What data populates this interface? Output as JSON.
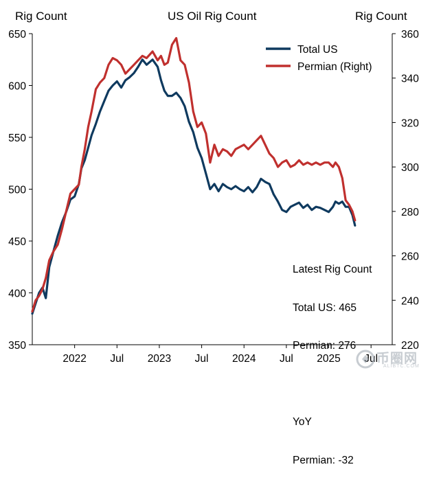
{
  "chart_data": {
    "type": "line",
    "title": "US Oil Rig Count",
    "left_axis_label": "Rig Count",
    "right_axis_label": "Rig Count",
    "left_ylim": [
      350,
      650
    ],
    "left_ticks": [
      350,
      400,
      450,
      500,
      550,
      600,
      650
    ],
    "right_ylim": [
      220,
      360
    ],
    "right_ticks": [
      220,
      240,
      260,
      280,
      300,
      320,
      340,
      360
    ],
    "x_ticks": [
      "2022",
      "Jul",
      "2023",
      "Jul",
      "2024",
      "Jul",
      "2025",
      "Jul"
    ],
    "x_tick_positions": [
      2022.0,
      2022.5,
      2023.0,
      2023.5,
      2024.0,
      2024.5,
      2025.0,
      2025.5
    ],
    "xlim": [
      2021.5,
      2025.75
    ],
    "legend_position": "top-right",
    "series": [
      {
        "name": "Total US",
        "axis": "left",
        "color": "#0f3a5f",
        "points": [
          [
            2021.5,
            380
          ],
          [
            2021.54,
            390
          ],
          [
            2021.58,
            400
          ],
          [
            2021.62,
            405
          ],
          [
            2021.66,
            395
          ],
          [
            2021.7,
            425
          ],
          [
            2021.75,
            440
          ],
          [
            2021.8,
            455
          ],
          [
            2021.85,
            468
          ],
          [
            2021.9,
            478
          ],
          [
            2021.95,
            490
          ],
          [
            2022.0,
            493
          ],
          [
            2022.05,
            505
          ],
          [
            2022.08,
            520
          ],
          [
            2022.12,
            528
          ],
          [
            2022.16,
            540
          ],
          [
            2022.2,
            552
          ],
          [
            2022.25,
            563
          ],
          [
            2022.3,
            575
          ],
          [
            2022.35,
            585
          ],
          [
            2022.4,
            595
          ],
          [
            2022.45,
            600
          ],
          [
            2022.5,
            604
          ],
          [
            2022.55,
            598
          ],
          [
            2022.6,
            605
          ],
          [
            2022.65,
            608
          ],
          [
            2022.7,
            612
          ],
          [
            2022.75,
            618
          ],
          [
            2022.8,
            625
          ],
          [
            2022.85,
            620
          ],
          [
            2022.92,
            625
          ],
          [
            2022.98,
            618
          ],
          [
            2023.02,
            605
          ],
          [
            2023.06,
            595
          ],
          [
            2023.1,
            590
          ],
          [
            2023.15,
            590
          ],
          [
            2023.2,
            593
          ],
          [
            2023.25,
            588
          ],
          [
            2023.3,
            580
          ],
          [
            2023.35,
            565
          ],
          [
            2023.4,
            555
          ],
          [
            2023.45,
            540
          ],
          [
            2023.5,
            530
          ],
          [
            2023.55,
            515
          ],
          [
            2023.6,
            500
          ],
          [
            2023.65,
            505
          ],
          [
            2023.7,
            498
          ],
          [
            2023.75,
            505
          ],
          [
            2023.8,
            502
          ],
          [
            2023.85,
            500
          ],
          [
            2023.9,
            503
          ],
          [
            2023.95,
            500
          ],
          [
            2024.0,
            498
          ],
          [
            2024.05,
            502
          ],
          [
            2024.1,
            497
          ],
          [
            2024.15,
            502
          ],
          [
            2024.2,
            510
          ],
          [
            2024.25,
            507
          ],
          [
            2024.3,
            505
          ],
          [
            2024.35,
            495
          ],
          [
            2024.4,
            488
          ],
          [
            2024.45,
            480
          ],
          [
            2024.5,
            478
          ],
          [
            2024.55,
            483
          ],
          [
            2024.6,
            485
          ],
          [
            2024.65,
            487
          ],
          [
            2024.7,
            482
          ],
          [
            2024.75,
            485
          ],
          [
            2024.8,
            480
          ],
          [
            2024.85,
            483
          ],
          [
            2024.9,
            482
          ],
          [
            2024.95,
            480
          ],
          [
            2025.0,
            478
          ],
          [
            2025.05,
            483
          ],
          [
            2025.08,
            488
          ],
          [
            2025.12,
            486
          ],
          [
            2025.16,
            488
          ],
          [
            2025.2,
            483
          ],
          [
            2025.24,
            483
          ],
          [
            2025.28,
            475
          ],
          [
            2025.31,
            465
          ]
        ]
      },
      {
        "name": "Permian (Right)",
        "axis": "right",
        "color": "#c0302e",
        "points": [
          [
            2021.5,
            235
          ],
          [
            2021.54,
            240
          ],
          [
            2021.58,
            242
          ],
          [
            2021.62,
            245
          ],
          [
            2021.66,
            250
          ],
          [
            2021.7,
            258
          ],
          [
            2021.75,
            262
          ],
          [
            2021.8,
            265
          ],
          [
            2021.85,
            272
          ],
          [
            2021.9,
            280
          ],
          [
            2021.95,
            288
          ],
          [
            2022.0,
            290
          ],
          [
            2022.05,
            292
          ],
          [
            2022.08,
            300
          ],
          [
            2022.12,
            308
          ],
          [
            2022.16,
            318
          ],
          [
            2022.2,
            325
          ],
          [
            2022.25,
            335
          ],
          [
            2022.3,
            338
          ],
          [
            2022.35,
            340
          ],
          [
            2022.4,
            346
          ],
          [
            2022.45,
            349
          ],
          [
            2022.5,
            348
          ],
          [
            2022.55,
            346
          ],
          [
            2022.6,
            342
          ],
          [
            2022.65,
            344
          ],
          [
            2022.7,
            346
          ],
          [
            2022.75,
            348
          ],
          [
            2022.8,
            350
          ],
          [
            2022.85,
            349
          ],
          [
            2022.92,
            352
          ],
          [
            2022.98,
            348
          ],
          [
            2023.02,
            350
          ],
          [
            2023.06,
            346
          ],
          [
            2023.1,
            347
          ],
          [
            2023.15,
            355
          ],
          [
            2023.2,
            358
          ],
          [
            2023.25,
            348
          ],
          [
            2023.3,
            346
          ],
          [
            2023.35,
            338
          ],
          [
            2023.4,
            325
          ],
          [
            2023.45,
            318
          ],
          [
            2023.5,
            320
          ],
          [
            2023.55,
            315
          ],
          [
            2023.6,
            302
          ],
          [
            2023.65,
            310
          ],
          [
            2023.7,
            305
          ],
          [
            2023.75,
            308
          ],
          [
            2023.8,
            307
          ],
          [
            2023.85,
            305
          ],
          [
            2023.9,
            308
          ],
          [
            2023.95,
            309
          ],
          [
            2024.0,
            310
          ],
          [
            2024.05,
            308
          ],
          [
            2024.1,
            310
          ],
          [
            2024.15,
            312
          ],
          [
            2024.2,
            314
          ],
          [
            2024.25,
            310
          ],
          [
            2024.3,
            306
          ],
          [
            2024.35,
            304
          ],
          [
            2024.4,
            300
          ],
          [
            2024.45,
            302
          ],
          [
            2024.5,
            303
          ],
          [
            2024.55,
            300
          ],
          [
            2024.6,
            301
          ],
          [
            2024.65,
            303
          ],
          [
            2024.7,
            301
          ],
          [
            2024.75,
            302
          ],
          [
            2024.8,
            301
          ],
          [
            2024.85,
            302
          ],
          [
            2024.9,
            301
          ],
          [
            2024.95,
            302
          ],
          [
            2025.0,
            302
          ],
          [
            2025.05,
            300
          ],
          [
            2025.08,
            302
          ],
          [
            2025.12,
            300
          ],
          [
            2025.16,
            295
          ],
          [
            2025.2,
            285
          ],
          [
            2025.24,
            283
          ],
          [
            2025.28,
            280
          ],
          [
            2025.31,
            276
          ]
        ]
      }
    ]
  },
  "annotation": {
    "heading": "Latest Rig Count",
    "total_line": "Total US: 465",
    "permian_line": "Permian: 276",
    "yoy_heading": "YoY",
    "yoy_line": "Permian: -32"
  },
  "watermark": {
    "text": "币圈网",
    "subtext": "ALIBTC.COM"
  }
}
